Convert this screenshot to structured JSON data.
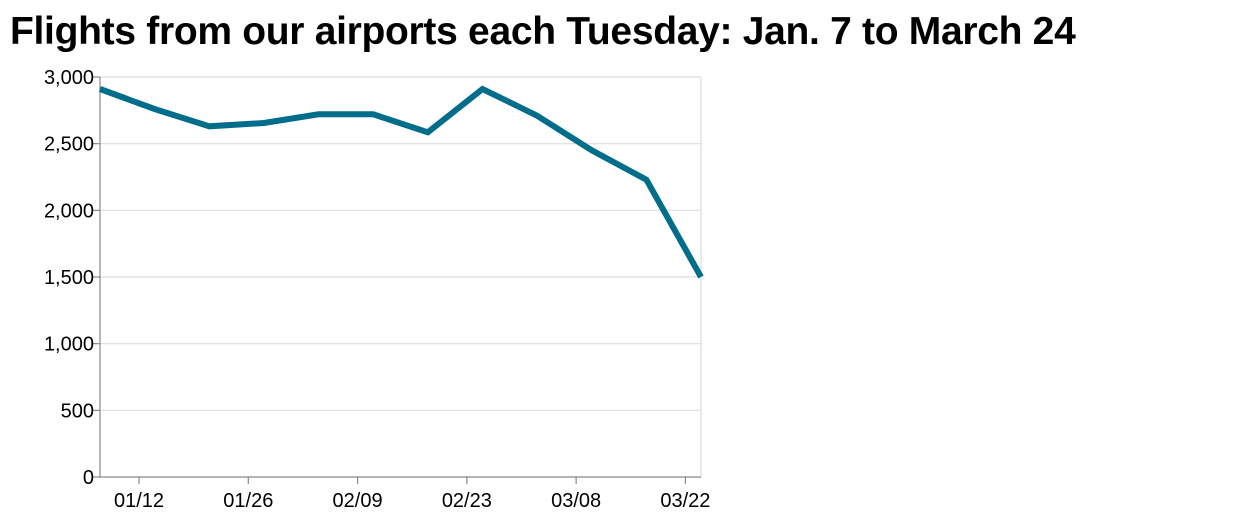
{
  "chart_data": {
    "type": "line",
    "title": "Flights from our airports each Tuesday: Jan. 7 to March 24",
    "xlabel": "",
    "ylabel": "",
    "x": [
      "2020-01-07",
      "2020-01-14",
      "2020-01-21",
      "2020-01-28",
      "2020-02-04",
      "2020-02-11",
      "2020-02-18",
      "2020-02-25",
      "2020-03-03",
      "2020-03-10",
      "2020-03-17",
      "2020-03-24"
    ],
    "series": [
      {
        "values": [
          2910,
          2760,
          2630,
          2655,
          2720,
          2720,
          2585,
          2910,
          2710,
          2450,
          2230,
          1500
        ]
      }
    ],
    "x_ticks": [
      "2020-01-12",
      "2020-01-26",
      "2020-02-09",
      "2020-02-23",
      "2020-03-08",
      "2020-03-22"
    ],
    "x_tick_labels": [
      "01/12",
      "01/26",
      "02/09",
      "02/23",
      "03/08",
      "03/22"
    ],
    "xlim": [
      "2020-01-07",
      "2020-03-24"
    ],
    "ylim": [
      0,
      3000
    ],
    "y_ticks": [
      0,
      500,
      1000,
      1500,
      2000,
      2500,
      3000
    ],
    "y_tick_labels": [
      "0",
      "500",
      "1,000",
      "1,500",
      "2,000",
      "2,500",
      "3,000"
    ],
    "grid": "horizontal",
    "legend": "none",
    "colors": {
      "line": "#006d8a",
      "grid": "#dddddd",
      "axis": "#888888",
      "text": "#000000"
    }
  }
}
